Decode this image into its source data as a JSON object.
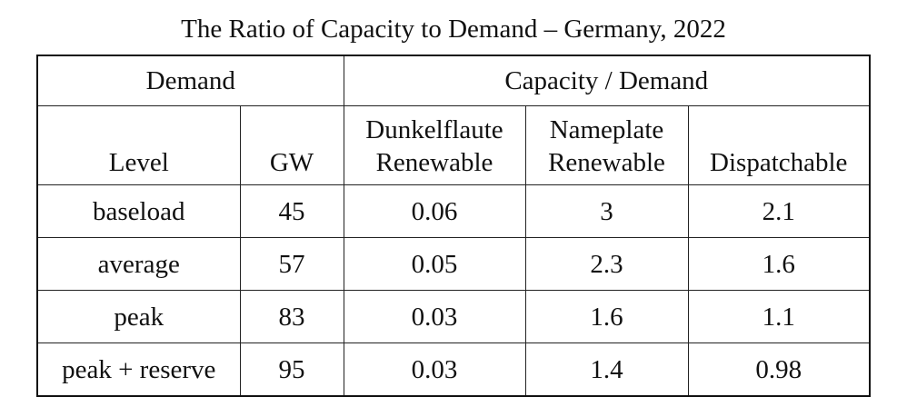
{
  "title": "The Ratio of Capacity to Demand – Germany, 2022",
  "header": {
    "demand_group": "Demand",
    "capacity_group": "Capacity / Demand",
    "columns": {
      "level": "Level",
      "gw": "GW",
      "dunkelflaute_line1": "Dunkelflaute",
      "dunkelflaute_line2": "Renewable",
      "nameplate_line1": "Nameplate",
      "nameplate_line2": "Renewable",
      "dispatchable": "Dispatchable"
    }
  },
  "rows": [
    {
      "level": "baseload",
      "gw": "45",
      "dunkelflaute": "0.06",
      "nameplate": "3",
      "dispatchable": "2.1"
    },
    {
      "level": "average",
      "gw": "57",
      "dunkelflaute": "0.05",
      "nameplate": "2.3",
      "dispatchable": "1.6"
    },
    {
      "level": "peak",
      "gw": "83",
      "dunkelflaute": "0.03",
      "nameplate": "1.6",
      "dispatchable": "1.1"
    },
    {
      "level": "peak + reserve",
      "gw": "95",
      "dunkelflaute": "0.03",
      "nameplate": "1.4",
      "dispatchable": "0.98"
    }
  ],
  "chart_data": {
    "type": "table",
    "title": "The Ratio of Capacity to Demand – Germany, 2022",
    "column_groups": [
      {
        "name": "Demand",
        "columns": [
          "Level",
          "GW"
        ]
      },
      {
        "name": "Capacity / Demand",
        "columns": [
          "Dunkelflaute Renewable",
          "Nameplate Renewable",
          "Dispatchable"
        ]
      }
    ],
    "columns": [
      "Level",
      "GW",
      "Dunkelflaute Renewable",
      "Nameplate Renewable",
      "Dispatchable"
    ],
    "rows": [
      [
        "baseload",
        45,
        0.06,
        3,
        2.1
      ],
      [
        "average",
        57,
        0.05,
        2.3,
        1.6
      ],
      [
        "peak",
        83,
        0.03,
        1.6,
        1.1
      ],
      [
        "peak + reserve",
        95,
        0.03,
        1.4,
        0.98
      ]
    ]
  }
}
